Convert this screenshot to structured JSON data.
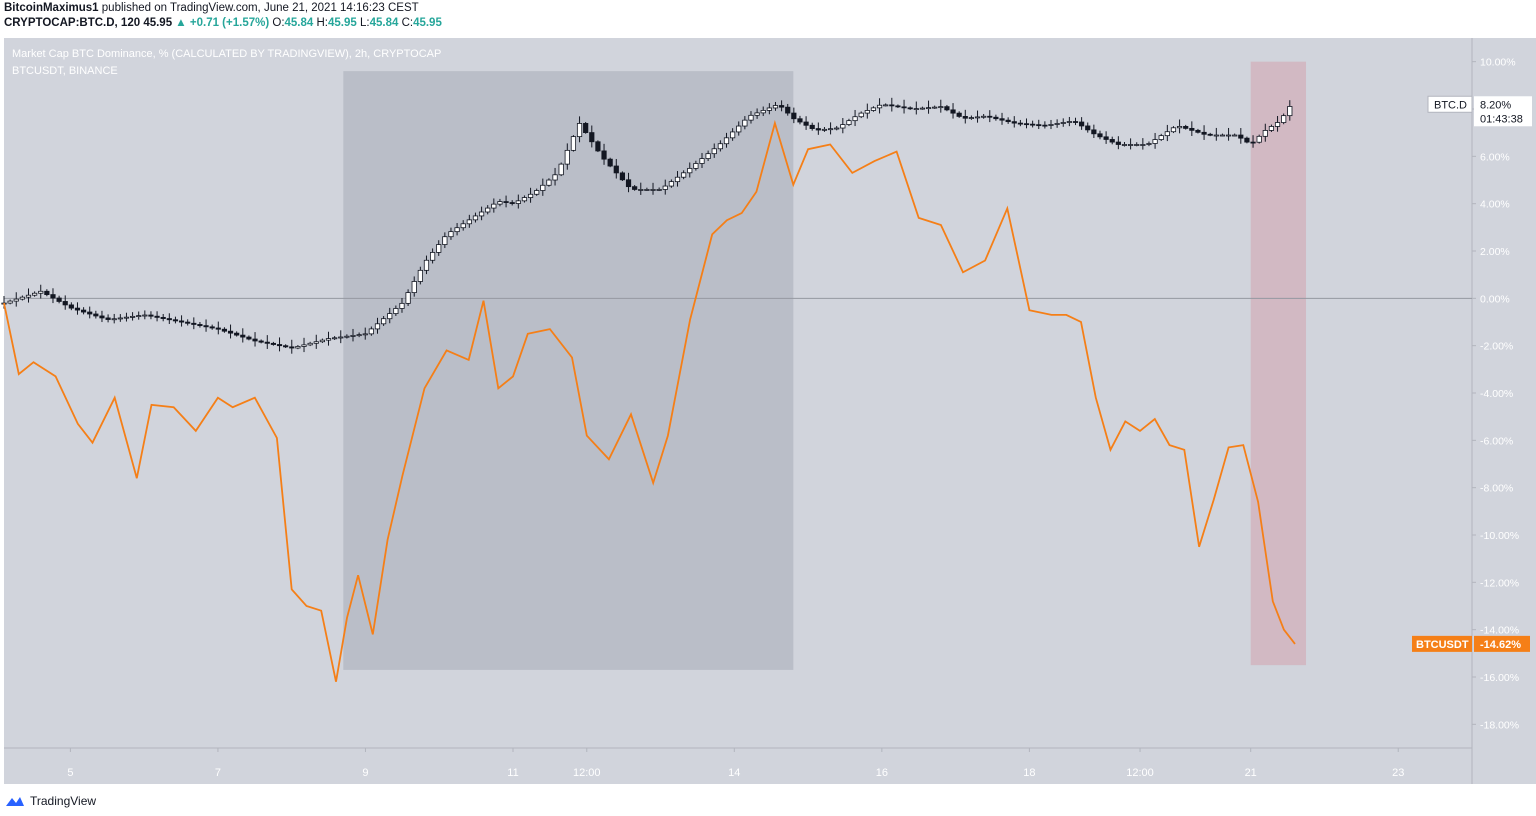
{
  "header": {
    "author": "BitcoinMaximus1",
    "published_text": "published on TradingView.com, June 21, 2021 14:16:23 CEST",
    "symbol": "CRYPTOCAP:BTC.D, 120",
    "last": "45.95",
    "change": "+0.71 (+1.57%)",
    "o_label": "O:",
    "o_value": "45.84",
    "h_label": "H:",
    "h_value": "45.95",
    "l_label": "L:",
    "l_value": "45.84",
    "c_label": "C:",
    "c_value": "45.95"
  },
  "chart_data": {
    "type": "line",
    "title": "Market Cap BTC Dominance, % (CALCULATED BY TRADINGVIEW), 2h, CRYPTOCAP",
    "subtitle": "BTCUSDT, BINANCE",
    "xlabel": "",
    "ylabel": "",
    "ylim": [
      -19,
      11
    ],
    "y_ticks": [
      "10.00%",
      "8.00%",
      "6.00%",
      "4.00%",
      "2.00%",
      "0.00%",
      "-2.00%",
      "-4.00%",
      "-6.00%",
      "-8.00%",
      "-10.00%",
      "-12.00%",
      "-14.00%",
      "-16.00%",
      "-18.00%"
    ],
    "y_tick_values": [
      10,
      8,
      6,
      4,
      2,
      0,
      -2,
      -4,
      -6,
      -8,
      -10,
      -12,
      -14,
      -16,
      -18
    ],
    "x_ticks": [
      "5",
      "7",
      "9",
      "11",
      "12:00",
      "14",
      "16",
      "18",
      "12:00",
      "21",
      "23"
    ],
    "x_tick_values": [
      5,
      7,
      9,
      11,
      12,
      14,
      16,
      18,
      19.5,
      21,
      23
    ],
    "xlim": [
      4.1,
      24
    ],
    "grid": false,
    "series": [
      {
        "name": "BTC.D",
        "style": "candles",
        "color": "#131722",
        "last_label": "8.20%",
        "countdown": "01:43:38",
        "x": [
          4.1,
          4.6,
          5.0,
          5.5,
          6.0,
          6.5,
          7.0,
          7.5,
          8.0,
          8.5,
          9.0,
          9.5,
          9.8,
          10.1,
          10.5,
          10.8,
          11.0,
          11.3,
          11.6,
          11.9,
          12.2,
          12.6,
          13.0,
          13.4,
          13.8,
          14.2,
          14.6,
          14.8,
          15.1,
          15.4,
          15.7,
          16.0,
          16.4,
          16.8,
          17.1,
          17.4,
          17.8,
          18.2,
          18.6,
          18.9,
          19.2,
          19.6,
          20.0,
          20.4,
          20.8,
          21.0,
          21.2,
          21.4,
          21.55
        ],
        "y": [
          -0.2,
          0.3,
          -0.4,
          -0.9,
          -0.7,
          -1.0,
          -1.3,
          -1.8,
          -2.1,
          -1.7,
          -1.5,
          -0.2,
          1.5,
          2.7,
          3.5,
          4.1,
          4.0,
          4.5,
          5.3,
          7.4,
          6.0,
          4.6,
          4.6,
          5.5,
          6.5,
          7.7,
          8.2,
          7.6,
          7.1,
          7.2,
          7.8,
          8.2,
          8.0,
          8.1,
          7.6,
          7.7,
          7.4,
          7.3,
          7.5,
          6.9,
          6.5,
          6.5,
          7.3,
          6.9,
          6.9,
          6.5,
          7.1,
          7.5,
          8.2
        ]
      },
      {
        "name": "BTCUSDT",
        "style": "line",
        "color": "#f57f17",
        "last_label": "-14.62%",
        "x": [
          4.1,
          4.3,
          4.5,
          4.8,
          5.1,
          5.3,
          5.6,
          5.9,
          6.1,
          6.4,
          6.7,
          7.0,
          7.2,
          7.5,
          7.8,
          8.0,
          8.2,
          8.4,
          8.6,
          8.75,
          8.9,
          9.1,
          9.3,
          9.5,
          9.8,
          10.1,
          10.4,
          10.6,
          10.8,
          11.0,
          11.2,
          11.5,
          11.8,
          12.0,
          12.3,
          12.6,
          12.9,
          13.1,
          13.4,
          13.7,
          13.9,
          14.1,
          14.3,
          14.55,
          14.8,
          15.0,
          15.3,
          15.6,
          15.9,
          16.2,
          16.5,
          16.8,
          17.1,
          17.4,
          17.7,
          18.0,
          18.3,
          18.5,
          18.7,
          18.9,
          19.1,
          19.3,
          19.5,
          19.7,
          19.9,
          20.1,
          20.3,
          20.5,
          20.7,
          20.9,
          21.1,
          21.3,
          21.45,
          21.6
        ],
        "y": [
          -0.2,
          -3.2,
          -2.7,
          -3.3,
          -5.3,
          -6.1,
          -4.2,
          -7.6,
          -4.5,
          -4.6,
          -5.6,
          -4.2,
          -4.6,
          -4.2,
          -5.9,
          -12.3,
          -13.0,
          -13.2,
          -16.2,
          -13.5,
          -11.7,
          -14.2,
          -10.2,
          -7.5,
          -3.8,
          -2.2,
          -2.6,
          -0.1,
          -3.8,
          -3.3,
          -1.5,
          -1.3,
          -2.5,
          -5.8,
          -6.8,
          -4.9,
          -7.8,
          -5.8,
          -0.9,
          2.7,
          3.3,
          3.6,
          4.5,
          7.4,
          4.8,
          6.3,
          6.5,
          5.3,
          5.8,
          6.2,
          3.4,
          3.1,
          1.1,
          1.6,
          3.8,
          -0.5,
          -0.7,
          -0.7,
          -1.0,
          -4.2,
          -6.4,
          -5.2,
          -5.6,
          -5.1,
          -6.2,
          -6.4,
          -10.5,
          -8.5,
          -6.3,
          -6.2,
          -8.6,
          -12.8,
          -14.0,
          -14.6
        ]
      }
    ],
    "shaded_regions": [
      {
        "x0": 8.7,
        "x1": 14.8,
        "y0": -15.7,
        "y1": 9.6,
        "color": "#9ea3af"
      },
      {
        "x0": 21.0,
        "x1": 21.75,
        "y0": -15.5,
        "y1": 10.0,
        "color": "#d39aa3"
      }
    ]
  },
  "footer": {
    "brand": "TradingView"
  }
}
